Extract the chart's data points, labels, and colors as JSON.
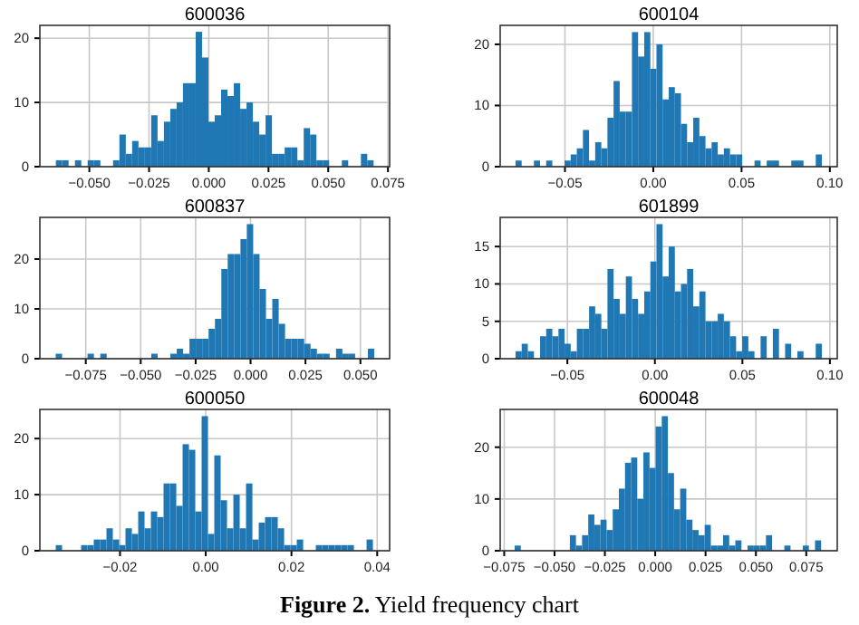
{
  "chart_data": [
    {
      "type": "histogram",
      "title": "600036",
      "color": "#1f77b4",
      "grid": true,
      "annotations": [
        "Figure 2. Yield frequency chart"
      ],
      "bins": [
        -0.064,
        -0.06134,
        -0.05868,
        -0.05602,
        -0.05336,
        -0.0507,
        -0.04804,
        -0.04538,
        -0.04272,
        -0.04006,
        -0.0374,
        -0.03474,
        -0.03208,
        -0.02942,
        -0.02676,
        -0.0241,
        -0.02144,
        -0.01878,
        -0.01612,
        -0.01346,
        -0.0108,
        -0.00814,
        -0.00548,
        -0.00282,
        -0.00016,
        0.0025,
        0.00516,
        0.00782,
        0.01048,
        0.01314,
        0.0158,
        0.01846,
        0.02112,
        0.02378,
        0.02644,
        0.0291,
        0.03176,
        0.03442,
        0.03708,
        0.03974,
        0.0424,
        0.04506,
        0.04772,
        0.05038,
        0.05304,
        0.0557,
        0.05836,
        0.06102,
        0.06368,
        0.06634,
        0.069
      ],
      "values": [
        1,
        1,
        0,
        1,
        0,
        1,
        1,
        0,
        0,
        1,
        5,
        2,
        4,
        3,
        3,
        8,
        4,
        7,
        9,
        10,
        13,
        13,
        21,
        17,
        7,
        8,
        12,
        11,
        13,
        9,
        10,
        7,
        5,
        8,
        2,
        2,
        3,
        3,
        1,
        6,
        5,
        1,
        1,
        0,
        0,
        1,
        0,
        0,
        2,
        1
      ],
      "xlim": [
        -0.0707,
        0.0757
      ],
      "xticks": [
        {
          "value": -0.05,
          "label": "−0.050"
        },
        {
          "value": -0.025,
          "label": "−0.025"
        },
        {
          "value": 0,
          "label": "0.000"
        },
        {
          "value": 0.025,
          "label": "0.025"
        },
        {
          "value": 0.05,
          "label": "0.050"
        },
        {
          "value": 0.075,
          "label": "0.075"
        }
      ],
      "ylim": [
        0,
        22
      ],
      "yticks": [
        0,
        10,
        20
      ]
    },
    {
      "type": "histogram",
      "title": "600104",
      "color": "#1f77b4",
      "grid": true,
      "bins": [
        -0.078,
        -0.07453,
        -0.07106,
        -0.06759,
        -0.06412,
        -0.06065,
        -0.05718,
        -0.05371,
        -0.05024,
        -0.04677,
        -0.0433,
        -0.03983,
        -0.03636,
        -0.03289,
        -0.02942,
        -0.02595,
        -0.02248,
        -0.01901,
        -0.01554,
        -0.01207,
        -0.0086,
        -0.00513,
        -0.00166,
        0.00181,
        0.00528,
        0.00875,
        0.01222,
        0.01569,
        0.01916,
        0.02263,
        0.0261,
        0.02957,
        0.03304,
        0.03651,
        0.03998,
        0.04345,
        0.04692,
        0.05039,
        0.05386,
        0.05733,
        0.0608,
        0.06427,
        0.06774,
        0.07121,
        0.07468,
        0.07815,
        0.08162,
        0.08509,
        0.08856,
        0.09203,
        0.0955
      ],
      "values": [
        1,
        0,
        0,
        1,
        0,
        1,
        0,
        0,
        1,
        2,
        3,
        6,
        1,
        4,
        3,
        8,
        14,
        9,
        9,
        22,
        18,
        22,
        16,
        20,
        11,
        13,
        12,
        7,
        4,
        8,
        5,
        3,
        4,
        2,
        3,
        2,
        2,
        0,
        0,
        1,
        0,
        1,
        1,
        0,
        0,
        1,
        1,
        0,
        0,
        2
      ],
      "xlim": [
        -0.0867,
        0.1042
      ],
      "xticks": [
        {
          "value": -0.05,
          "label": "−0.05"
        },
        {
          "value": 0,
          "label": "0.00"
        },
        {
          "value": 0.05,
          "label": "0.05"
        },
        {
          "value": 0.1,
          "label": "0.10"
        }
      ],
      "ylim": [
        0,
        23.1
      ],
      "yticks": [
        0,
        10,
        20
      ]
    },
    {
      "type": "histogram",
      "title": "600837",
      "color": "#1f77b4",
      "grid": true,
      "bins": [
        -0.0887,
        -0.0858,
        -0.0829,
        -0.08,
        -0.0771,
        -0.0742,
        -0.0713,
        -0.0684,
        -0.0655,
        -0.0626,
        -0.0597,
        -0.0568,
        -0.0539,
        -0.051,
        -0.0481,
        -0.0452,
        -0.0423,
        -0.0394,
        -0.0365,
        -0.0336,
        -0.0307,
        -0.0278,
        -0.0249,
        -0.022,
        -0.0191,
        -0.0162,
        -0.0133,
        -0.0104,
        -0.0075,
        -0.0046,
        -0.0017,
        0.0012,
        0.0041,
        0.007,
        0.0099,
        0.0128,
        0.0157,
        0.0186,
        0.0215,
        0.0244,
        0.0273,
        0.0302,
        0.0331,
        0.036,
        0.0389,
        0.0418,
        0.0447,
        0.0476,
        0.0505,
        0.0534,
        0.0563
      ],
      "values": [
        1,
        0,
        0,
        0,
        0,
        1,
        0,
        1,
        0,
        0,
        0,
        0,
        0,
        0,
        0,
        1,
        0,
        0,
        1,
        2,
        1,
        4,
        4,
        4,
        6,
        8,
        18,
        21,
        21,
        24,
        27,
        21,
        14,
        8,
        12,
        7,
        4,
        4,
        4,
        3,
        2,
        1,
        1,
        0,
        2,
        1,
        1,
        0,
        0,
        2
      ],
      "xlim": [
        -0.0959,
        0.0633
      ],
      "xticks": [
        {
          "value": -0.075,
          "label": "−0.075"
        },
        {
          "value": -0.05,
          "label": "−0.050"
        },
        {
          "value": -0.025,
          "label": "−0.025"
        },
        {
          "value": 0,
          "label": "0.000"
        },
        {
          "value": 0.025,
          "label": "0.025"
        },
        {
          "value": 0.05,
          "label": "0.050"
        }
      ],
      "ylim": [
        0,
        28.35
      ],
      "yticks": [
        0,
        10,
        20
      ]
    },
    {
      "type": "histogram",
      "title": "601899",
      "color": "#1f77b4",
      "grid": true,
      "bins": [
        -0.0796,
        -0.0761,
        -0.0726,
        -0.0691,
        -0.0656,
        -0.0621,
        -0.0586,
        -0.0551,
        -0.0516,
        -0.0481,
        -0.0446,
        -0.0411,
        -0.0376,
        -0.0341,
        -0.0306,
        -0.0271,
        -0.0236,
        -0.0201,
        -0.0166,
        -0.0131,
        -0.0096,
        -0.0061,
        -0.0026,
        0.0009,
        0.0044,
        0.0079,
        0.0114,
        0.0149,
        0.0184,
        0.0219,
        0.0254,
        0.0289,
        0.0324,
        0.0359,
        0.0394,
        0.0429,
        0.0464,
        0.0499,
        0.0534,
        0.0569,
        0.0604,
        0.0639,
        0.0674,
        0.0709,
        0.0744,
        0.0779,
        0.0814,
        0.0849,
        0.0884,
        0.0919,
        0.0954
      ],
      "values": [
        1,
        2,
        1,
        0,
        3,
        4,
        3,
        4,
        2,
        1,
        4,
        4,
        7,
        6,
        4,
        12,
        8,
        6,
        11,
        8,
        6,
        9,
        13,
        18,
        11,
        15,
        9,
        10,
        12,
        7,
        9,
        5,
        5,
        6,
        5,
        3,
        1,
        3,
        1,
        0,
        3,
        0,
        4,
        0,
        2,
        0,
        1,
        0,
        0,
        2
      ],
      "xlim": [
        -0.0884,
        0.1042
      ],
      "xticks": [
        {
          "value": -0.05,
          "label": "−0.05"
        },
        {
          "value": 0,
          "label": "0.00"
        },
        {
          "value": 0.05,
          "label": "0.05"
        },
        {
          "value": 0.1,
          "label": "0.10"
        }
      ],
      "ylim": [
        0,
        18.9
      ],
      "yticks": [
        0,
        5,
        10,
        15
      ]
    },
    {
      "type": "histogram",
      "title": "600050",
      "color": "#1f77b4",
      "grid": true,
      "bins": [
        -0.035,
        -0.03352,
        -0.03204,
        -0.03056,
        -0.02908,
        -0.0276,
        -0.02612,
        -0.02464,
        -0.02316,
        -0.02168,
        -0.0202,
        -0.01872,
        -0.01724,
        -0.01576,
        -0.01428,
        -0.0128,
        -0.01132,
        -0.00984,
        -0.00836,
        -0.00688,
        -0.0054,
        -0.00392,
        -0.00244,
        -0.00096,
        0.00052,
        0.002,
        0.00348,
        0.00496,
        0.00644,
        0.00792,
        0.0094,
        0.01088,
        0.01236,
        0.01384,
        0.01532,
        0.0168,
        0.01828,
        0.01976,
        0.02124,
        0.02272,
        0.0242,
        0.02568,
        0.02716,
        0.02864,
        0.03012,
        0.0316,
        0.03308,
        0.03456,
        0.03604,
        0.03752,
        0.039
      ],
      "values": [
        1,
        0,
        0,
        0,
        1,
        1,
        2,
        2,
        4,
        2,
        1,
        4,
        3,
        7,
        4,
        7,
        6,
        12,
        12,
        8,
        19,
        18,
        7,
        24,
        3,
        17,
        9,
        4,
        10,
        4,
        12,
        2,
        5,
        6,
        6,
        4,
        1,
        1,
        2,
        0,
        0,
        1,
        1,
        1,
        1,
        1,
        1,
        0,
        0,
        2
      ],
      "xlim": [
        -0.0387,
        0.0429
      ],
      "xticks": [
        {
          "value": -0.02,
          "label": "−0.02"
        },
        {
          "value": 0,
          "label": "0.00"
        },
        {
          "value": 0.02,
          "label": "0.02"
        },
        {
          "value": 0.04,
          "label": "0.04"
        }
      ],
      "ylim": [
        0,
        25.2
      ],
      "yticks": [
        0,
        10,
        20
      ]
    },
    {
      "type": "histogram",
      "title": "600048",
      "color": "#1f77b4",
      "grid": true,
      "bins": [
        -0.0698,
        -0.06676,
        -0.06371,
        -0.06067,
        -0.05762,
        -0.05458,
        -0.05154,
        -0.04849,
        -0.04545,
        -0.0424,
        -0.03936,
        -0.03632,
        -0.03327,
        -0.03023,
        -0.02718,
        -0.02414,
        -0.0211,
        -0.01805,
        -0.01501,
        -0.01196,
        -0.00892,
        -0.00588,
        -0.00283,
        0.00021,
        0.00326,
        0.0063,
        0.00934,
        0.01239,
        0.01543,
        0.01848,
        0.02152,
        0.02456,
        0.02761,
        0.03065,
        0.0337,
        0.03674,
        0.03978,
        0.04283,
        0.04587,
        0.04892,
        0.05196,
        0.055,
        0.05805,
        0.06109,
        0.06414,
        0.06718,
        0.07022,
        0.07327,
        0.07631,
        0.07936,
        0.0824
      ],
      "values": [
        1,
        0,
        0,
        0,
        0,
        0,
        0,
        0,
        0,
        3,
        1,
        3,
        7,
        5,
        6,
        4,
        8,
        12,
        17,
        18,
        10,
        19,
        16,
        24,
        26,
        15,
        8,
        12,
        6,
        4,
        3,
        5,
        1,
        1,
        3,
        1,
        2,
        0,
        1,
        1,
        1,
        3,
        0,
        0,
        1,
        0,
        0,
        1,
        0,
        2
      ],
      "xlim": [
        -0.077,
        0.0904
      ],
      "xticks": [
        {
          "value": -0.075,
          "label": "−0.075"
        },
        {
          "value": -0.05,
          "label": "−0.050"
        },
        {
          "value": -0.025,
          "label": "−0.025"
        },
        {
          "value": 0,
          "label": "0.000"
        },
        {
          "value": 0.025,
          "label": "0.025"
        },
        {
          "value": 0.05,
          "label": "0.050"
        },
        {
          "value": 0.075,
          "label": "0.075"
        }
      ],
      "ylim": [
        0,
        27.3
      ],
      "yticks": [
        0,
        10,
        20
      ]
    }
  ]
}
